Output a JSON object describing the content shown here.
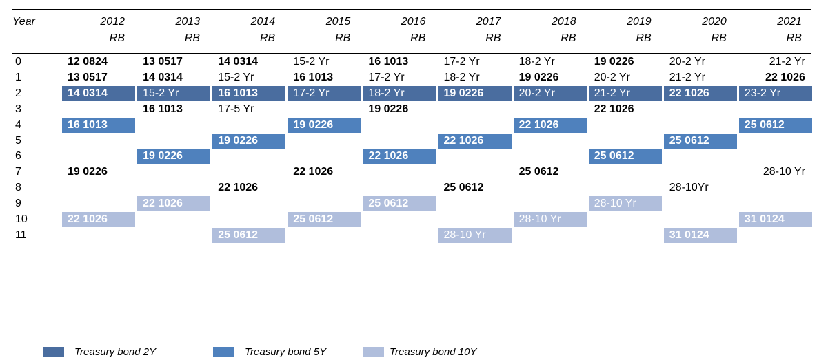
{
  "table": {
    "header": {
      "label": "Year",
      "years": [
        "2012",
        "2013",
        "2014",
        "2015",
        "2016",
        "2017",
        "2018",
        "2019",
        "2020",
        "2021"
      ],
      "sub": [
        "RB",
        "RB",
        "RB",
        "RB",
        "RB",
        "RB",
        "RB",
        "RB",
        "RB",
        "RB"
      ]
    },
    "rows": [
      {
        "label": "0",
        "cells": [
          "12 0824",
          "13 0517",
          "14 0314",
          "15-2 Yr",
          "16 1013",
          "17-2 Yr",
          "18-2 Yr",
          "19 0226",
          "20-2 Yr",
          "21-2 Yr"
        ]
      },
      {
        "label": "1",
        "cells": [
          "13 0517",
          "14 0314",
          "15-2 Yr",
          "16 1013",
          "17-2 Yr",
          "18-2 Yr",
          "19 0226",
          "20-2 Yr",
          "21-2 Yr",
          "22 1026"
        ]
      },
      {
        "label": "2",
        "cells": [
          "14 0314",
          "15-2 Yr",
          "16 1013",
          "17-2 Yr",
          "18-2 Yr",
          "19 0226",
          "20-2 Yr",
          "21-2 Yr",
          "22 1026",
          "23-2 Yr"
        ]
      },
      {
        "label": "3",
        "cells": [
          null,
          "16 1013",
          "17-5 Yr",
          null,
          "19 0226",
          null,
          null,
          "22 1026",
          null,
          null
        ]
      },
      {
        "label": "4",
        "cells": [
          "16 1013",
          null,
          null,
          "19 0226",
          null,
          null,
          "22 1026",
          null,
          null,
          "25 0612"
        ]
      },
      {
        "label": "5",
        "cells": [
          null,
          null,
          "19 0226",
          null,
          null,
          "22 1026",
          null,
          null,
          "25 0612",
          null
        ]
      },
      {
        "label": "6",
        "cells": [
          null,
          "19 0226",
          null,
          null,
          "22 1026",
          null,
          null,
          "25 0612",
          null,
          null
        ]
      },
      {
        "label": "7",
        "cells": [
          "19 0226",
          null,
          null,
          "22 1026",
          null,
          null,
          "25 0612",
          null,
          null,
          "28-10 Yr"
        ]
      },
      {
        "label": "8",
        "cells": [
          null,
          null,
          "22 1026",
          null,
          null,
          "25 0612",
          null,
          null,
          "28-10Yr",
          null
        ]
      },
      {
        "label": "9",
        "cells": [
          null,
          "22 1026",
          null,
          null,
          "25 0612",
          null,
          null,
          "28-10 Yr",
          null,
          null
        ]
      },
      {
        "label": "10",
        "cells": [
          "22 1026",
          null,
          null,
          "25 0612",
          null,
          null,
          "28-10 Yr",
          null,
          null,
          "31 0124"
        ]
      },
      {
        "label": "11",
        "cells": [
          null,
          null,
          "25 0612",
          null,
          null,
          "28-10 Yr",
          null,
          null,
          "31 0124",
          null
        ]
      }
    ]
  },
  "legend": [
    {
      "label": "Treasury bond 2Y"
    },
    {
      "label": "Treasury bond 5Y"
    },
    {
      "label": "Treasury bond 10Y"
    }
  ]
}
